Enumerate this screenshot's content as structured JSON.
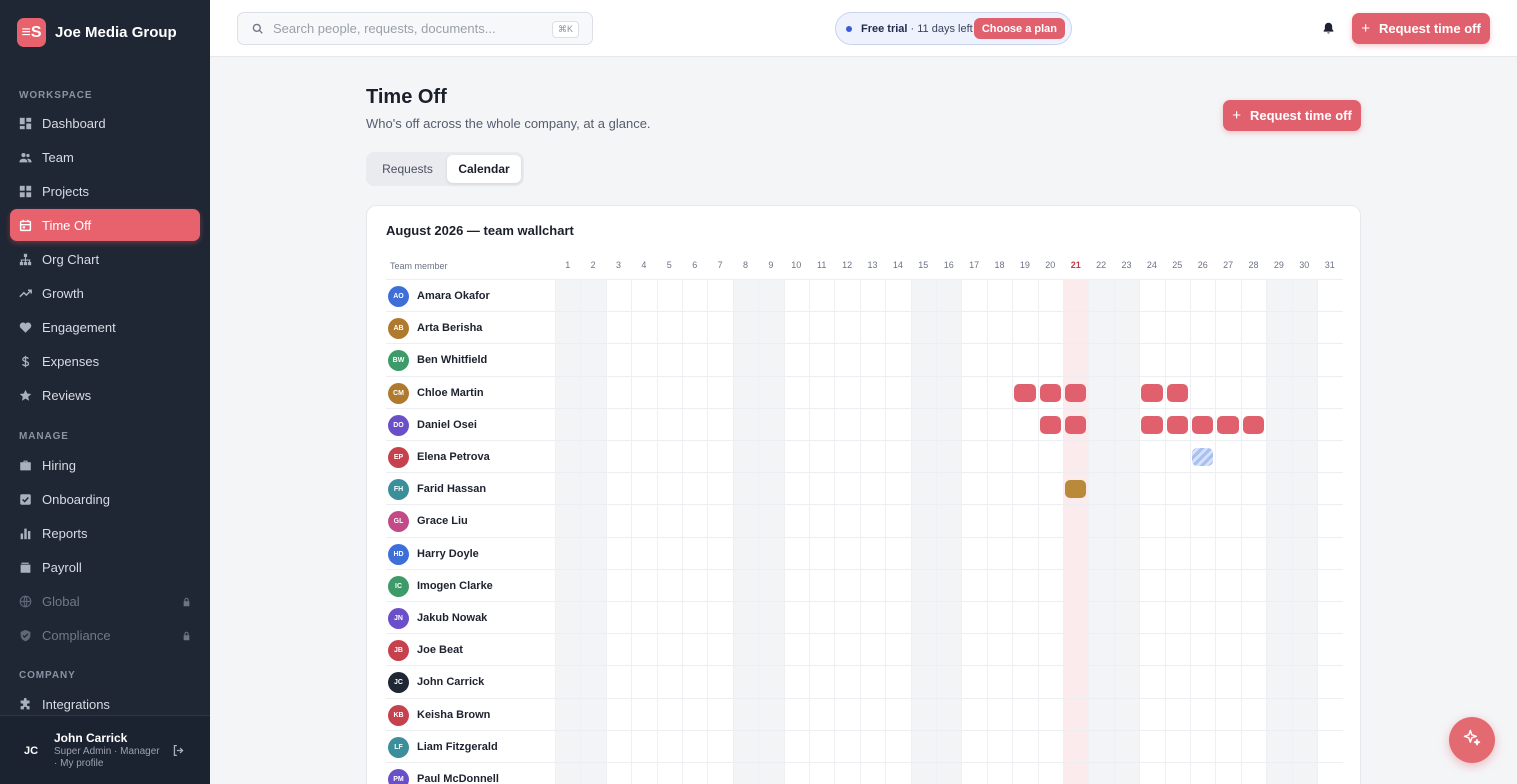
{
  "brand": {
    "name": "Joe Media Group",
    "logo": "≡S"
  },
  "sidebar": {
    "workspace_label": "WORKSPACE",
    "manage_label": "MANAGE",
    "company_label": "COMPANY",
    "workspace": [
      {
        "label": "Dashboard",
        "icon": "dashboard-icon"
      },
      {
        "label": "Team",
        "icon": "people-icon"
      },
      {
        "label": "Projects",
        "icon": "grid-icon"
      },
      {
        "label": "Time Off",
        "icon": "calendar-icon",
        "active": true
      },
      {
        "label": "Org Chart",
        "icon": "org-chart-icon"
      },
      {
        "label": "Growth",
        "icon": "trend-icon"
      },
      {
        "label": "Engagement",
        "icon": "heart-icon"
      },
      {
        "label": "Expenses",
        "icon": "dollar-icon"
      },
      {
        "label": "Reviews",
        "icon": "star-icon"
      }
    ],
    "manage": [
      {
        "label": "Hiring",
        "icon": "briefcase-icon"
      },
      {
        "label": "Onboarding",
        "icon": "checkbox-icon"
      },
      {
        "label": "Reports",
        "icon": "bar-chart-icon"
      },
      {
        "label": "Payroll",
        "icon": "wallet-icon"
      },
      {
        "label": "Global",
        "icon": "globe-icon",
        "locked": true
      },
      {
        "label": "Compliance",
        "icon": "shield-icon",
        "locked": true
      }
    ],
    "company": [
      {
        "label": "Integrations",
        "icon": "puzzle-icon"
      }
    ]
  },
  "user": {
    "initials": "JC",
    "name": "John Carrick",
    "role": "Super Admin · Manager · My profile"
  },
  "topbar": {
    "search_placeholder": "Search people, requests, documents...",
    "shortcut": "⌘K",
    "trial_bold": "Free trial",
    "trial_rest": " · 11 days left",
    "plan_button": "Choose a plan",
    "request_button": "Request time off"
  },
  "page": {
    "title": "Time Off",
    "subtitle": "Who's off across the whole company, at a glance.",
    "request_button": "Request time off",
    "tabs": [
      "Requests",
      "Calendar"
    ],
    "active_tab": "Calendar"
  },
  "calendar": {
    "title": "August 2026 — team wallchart",
    "member_header": "Team member",
    "days": [
      "1",
      "2",
      "3",
      "4",
      "5",
      "6",
      "7",
      "8",
      "9",
      "10",
      "11",
      "12",
      "13",
      "14",
      "15",
      "16",
      "17",
      "18",
      "19",
      "20",
      "21",
      "22",
      "23",
      "24",
      "25",
      "26",
      "27",
      "28",
      "29",
      "30",
      "31"
    ],
    "weekends": [
      1,
      2,
      8,
      9,
      15,
      16,
      22,
      23,
      29,
      30
    ],
    "today": 21,
    "members": [
      {
        "initials": "AO",
        "name": "Amara Okafor",
        "color": "#3e6fd8",
        "off": []
      },
      {
        "initials": "AB",
        "name": "Arta Berisha",
        "color": "#b07a2e",
        "off": []
      },
      {
        "initials": "BW",
        "name": "Ben Whitfield",
        "color": "#3f9a6a",
        "off": []
      },
      {
        "initials": "CM",
        "name": "Chloe Martin",
        "color": "#b07a2e",
        "off": [
          {
            "day": 19,
            "type": "pto"
          },
          {
            "day": 20,
            "type": "pto"
          },
          {
            "day": 21,
            "type": "pto"
          },
          {
            "day": 24,
            "type": "pto"
          },
          {
            "day": 25,
            "type": "pto"
          }
        ]
      },
      {
        "initials": "DO",
        "name": "Daniel Osei",
        "color": "#6a4fc8",
        "off": [
          {
            "day": 20,
            "type": "pto"
          },
          {
            "day": 21,
            "type": "pto"
          },
          {
            "day": 24,
            "type": "pto"
          },
          {
            "day": 25,
            "type": "pto"
          },
          {
            "day": 26,
            "type": "pto"
          },
          {
            "day": 27,
            "type": "pto"
          },
          {
            "day": 28,
            "type": "pto"
          }
        ]
      },
      {
        "initials": "EP",
        "name": "Elena Petrova",
        "color": "#c7404e",
        "off": [
          {
            "day": 26,
            "type": "pending"
          }
        ]
      },
      {
        "initials": "FH",
        "name": "Farid Hassan",
        "color": "#3a8f9a",
        "off": [
          {
            "day": 21,
            "type": "sick"
          }
        ]
      },
      {
        "initials": "GL",
        "name": "Grace Liu",
        "color": "#c24a86",
        "off": []
      },
      {
        "initials": "HD",
        "name": "Harry Doyle",
        "color": "#3e6fd8",
        "off": []
      },
      {
        "initials": "IC",
        "name": "Imogen Clarke",
        "color": "#3f9a6a",
        "off": []
      },
      {
        "initials": "JN",
        "name": "Jakub Nowak",
        "color": "#6a4fc8",
        "off": []
      },
      {
        "initials": "JB",
        "name": "Joe Beat",
        "color": "#c7404e",
        "off": []
      },
      {
        "initials": "JC",
        "name": "John Carrick",
        "color": "#1f2634",
        "off": []
      },
      {
        "initials": "KB",
        "name": "Keisha Brown",
        "color": "#c7404e",
        "off": []
      },
      {
        "initials": "LF",
        "name": "Liam Fitzgerald",
        "color": "#3a8f9a",
        "off": []
      },
      {
        "initials": "PM",
        "name": "Paul McDonnell",
        "color": "#6a4fc8",
        "off": []
      }
    ]
  },
  "fab": {
    "icon": "sparkle-icon"
  }
}
